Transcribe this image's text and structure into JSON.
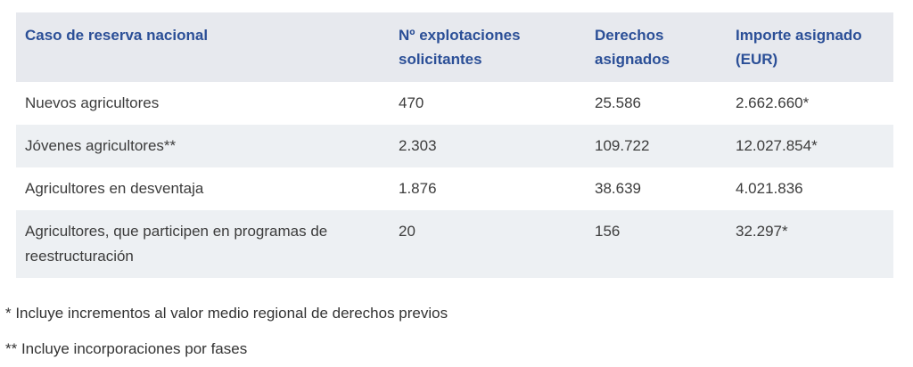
{
  "colors": {
    "header_bg": "#e7e9ee",
    "stripe_bg": "#edf0f3",
    "header_text": "#2b4f97",
    "body_text": "#3c3c3c",
    "footnote_text": "#333333",
    "page_bg": "#ffffff"
  },
  "chart_data": {
    "type": "table",
    "title": "",
    "columns": [
      "Caso de reserva nacional",
      "Nº explotaciones solicitantes",
      "Derechos asignados",
      "Importe asignado (EUR)"
    ],
    "rows": [
      [
        "Nuevos agricultores",
        "470",
        "25.586",
        "2.662.660*"
      ],
      [
        "Jóvenes agricultores**",
        "2.303",
        "109.722",
        "12.027.854*"
      ],
      [
        "Agricultores en desventaja",
        "1.876",
        "38.639",
        "4.021.836"
      ],
      [
        "Agricultores, que participen en programas de reestructuración",
        "20",
        "156",
        "32.297*"
      ]
    ],
    "layout": {
      "header_background": "#e7e9ee",
      "zebra_striping": true,
      "striped_row_indexes": [
        1,
        3
      ]
    }
  },
  "footnotes": [
    "* Incluye incrementos al valor medio regional de derechos previos",
    "** Incluye incorporaciones por fases"
  ]
}
